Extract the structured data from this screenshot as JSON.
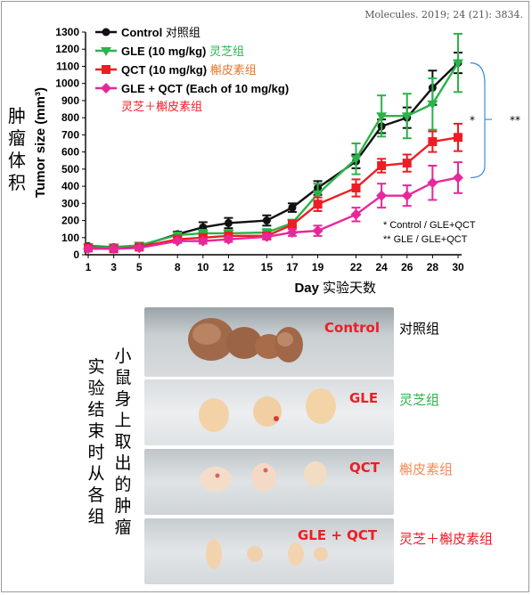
{
  "citation": "Molecules. 2019; 24 (21): 3834.",
  "colors": {
    "control": "#111111",
    "gle": "#2bb34a",
    "qct": "#ee1c24",
    "combo": "#e6289a",
    "bracket": "#3a8fd6"
  },
  "side_title_cn": [
    "肿",
    "瘤",
    "体",
    "积"
  ],
  "chart_data": {
    "type": "line",
    "xlabel": "Day",
    "xlabel_cn": "实验天数",
    "ylabel": "Tumor size (mm³)",
    "x": [
      1,
      3,
      5,
      8,
      10,
      12,
      15,
      17,
      19,
      22,
      24,
      26,
      28,
      30
    ],
    "ylim": [
      0,
      1300
    ],
    "yticks": [
      0,
      100,
      200,
      300,
      400,
      500,
      600,
      700,
      800,
      900,
      1000,
      1100,
      1200,
      1300
    ],
    "grid": false,
    "legend_position": "top-left",
    "series": [
      {
        "name": "Control",
        "name_cn": "对照组",
        "values": [
          50,
          45,
          50,
          120,
          160,
          185,
          200,
          275,
          390,
          545,
          750,
          800,
          975,
          1120
        ],
        "errors": [
          10,
          10,
          10,
          15,
          30,
          30,
          30,
          25,
          40,
          40,
          40,
          60,
          100,
          60
        ]
      },
      {
        "name": "GLE (10 mg/kg)",
        "name_cn": "灵芝组",
        "values": [
          45,
          45,
          55,
          115,
          125,
          125,
          130,
          185,
          355,
          560,
          810,
          810,
          880,
          1120
        ],
        "errors": [
          10,
          10,
          10,
          15,
          20,
          20,
          20,
          20,
          60,
          90,
          120,
          130,
          150,
          170
        ]
      },
      {
        "name": "QCT (10 mg/kg)",
        "name_cn": "槲皮素组",
        "values": [
          40,
          35,
          45,
          90,
          100,
          110,
          110,
          175,
          295,
          390,
          520,
          535,
          660,
          685
        ],
        "errors": [
          10,
          10,
          10,
          15,
          15,
          20,
          20,
          25,
          40,
          50,
          40,
          50,
          60,
          80
        ]
      },
      {
        "name": "GLE + QCT (Each of 10 mg/kg)",
        "name_cn": "灵芝＋槲皮素组",
        "values": [
          35,
          35,
          40,
          80,
          80,
          90,
          105,
          130,
          140,
          235,
          345,
          345,
          420,
          450
        ],
        "errors": [
          10,
          10,
          10,
          10,
          15,
          15,
          15,
          20,
          30,
          40,
          70,
          60,
          100,
          90
        ]
      }
    ],
    "annotations": [
      {
        "mark": "*",
        "text": "Control / GLE+QCT"
      },
      {
        "mark": "**",
        "text": "GLE / GLE+QCT"
      }
    ],
    "bracket_marks": [
      "*",
      "**"
    ]
  },
  "photo_section": {
    "vertical_caption_1": [
      "小",
      "鼠",
      "身",
      "上",
      "取",
      "出",
      "的",
      "肿",
      "瘤"
    ],
    "vertical_caption_2": [
      "实",
      "验",
      "结",
      "束",
      "时",
      "从",
      "各",
      "组"
    ],
    "panels": [
      {
        "label": "Control",
        "label_cn": "对照组",
        "label_cn_color": "#111111",
        "tumors": 3,
        "tone": "dark"
      },
      {
        "label": "GLE",
        "label_cn": "灵芝组",
        "label_cn_color": "#2bb34a",
        "tumors": 3,
        "tone": "light"
      },
      {
        "label": "QCT",
        "label_cn": "槲皮素组",
        "label_cn_color": "#f28c5a",
        "tumors": 3,
        "tone": "light"
      },
      {
        "label": "GLE + QCT",
        "label_cn": "灵芝＋槲皮素组",
        "label_cn_color": "#ee1c24",
        "tumors": 4,
        "tone": "light"
      }
    ]
  }
}
